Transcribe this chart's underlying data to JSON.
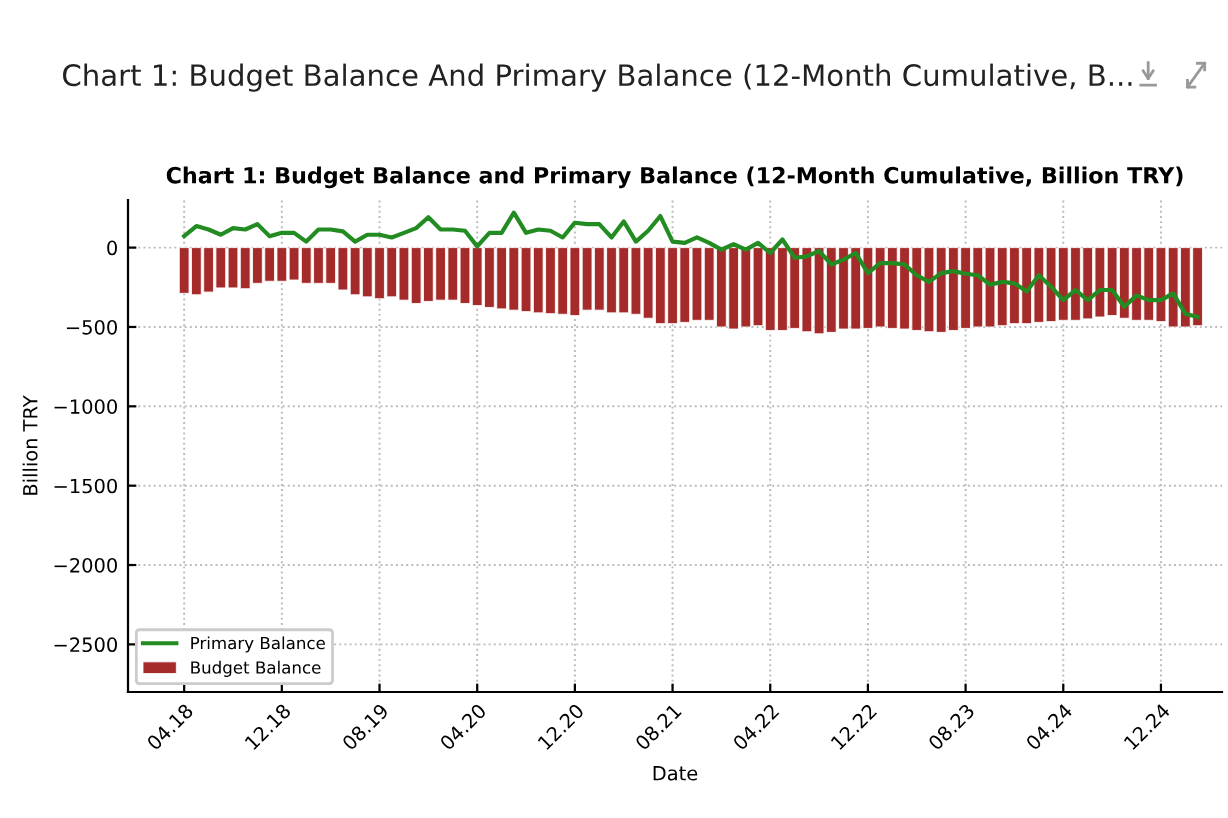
{
  "chart_data": {
    "type": "bar",
    "title": "Chart 1: Budget Balance and Primary Balance (12-Month Cumulative, Billion TRY)",
    "xlabel": "Date",
    "ylabel": "Billion TRY",
    "annotations": [
      "Chart 1: Budget Balance And Primary Balance (12-Month Cumulative, B..."
    ],
    "categories": [
      "04.18",
      null,
      null,
      null,
      null,
      null,
      null,
      null,
      "12.18",
      null,
      null,
      null,
      null,
      null,
      null,
      null,
      "08.19",
      null,
      null,
      null,
      null,
      null,
      null,
      null,
      "04.20",
      null,
      null,
      null,
      null,
      null,
      null,
      null,
      "12.20",
      null,
      null,
      null,
      null,
      null,
      null,
      null,
      "08.21",
      null,
      null,
      null,
      null,
      null,
      null,
      null,
      "04.22",
      null,
      null,
      null,
      null,
      null,
      null,
      null,
      "12.22",
      null,
      null,
      null,
      null,
      null,
      null,
      null,
      "08.23",
      null,
      null,
      null,
      null,
      null,
      null,
      null,
      "04.24",
      null,
      null,
      null,
      null,
      null,
      null,
      null,
      "12.24",
      null,
      null,
      null
    ],
    "series": [
      {
        "name": "Primary Balance",
        "type": "line",
        "color": "#228b22",
        "values": [
          72,
          136,
          114,
          81,
          123,
          114,
          148,
          72,
          93,
          93,
          38,
          114,
          114,
          102,
          38,
          81,
          81,
          64,
          93,
          123,
          191,
          114,
          114,
          106,
          8,
          93,
          93,
          220,
          93,
          114,
          106,
          64,
          157,
          148,
          148,
          64,
          165,
          38,
          106,
          199,
          38,
          30,
          64,
          30,
          -13,
          21,
          -13,
          30,
          -34,
          51,
          -64,
          -55,
          -21,
          -106,
          -76,
          -34,
          -161,
          -98,
          -98,
          -106,
          -174,
          -216,
          -161,
          -148,
          -165,
          -174,
          -233,
          -216,
          -225,
          -276,
          -174,
          -246,
          -331,
          -267,
          -331,
          -267,
          -267,
          -373,
          -301,
          -331,
          -331,
          -288,
          -416,
          -437
        ]
      },
      {
        "name": "Budget Balance",
        "color": "#a52a2a",
        "values": [
          -288,
          -297,
          -280,
          -254,
          -254,
          -259,
          -225,
          -212,
          -212,
          -204,
          -225,
          -225,
          -225,
          -267,
          -297,
          -310,
          -322,
          -310,
          -331,
          -352,
          -339,
          -331,
          -331,
          -352,
          -365,
          -377,
          -386,
          -394,
          -403,
          -411,
          -416,
          -420,
          -428,
          -394,
          -394,
          -411,
          -411,
          -420,
          -445,
          -479,
          -479,
          -471,
          -458,
          -458,
          -500,
          -513,
          -500,
          -492,
          -522,
          -522,
          -509,
          -530,
          -543,
          -534,
          -513,
          -513,
          -509,
          -500,
          -509,
          -513,
          -522,
          -530,
          -534,
          -522,
          -509,
          -500,
          -500,
          -492,
          -479,
          -479,
          -471,
          -466,
          -458,
          -458,
          -449,
          -437,
          -428,
          -445,
          -458,
          -458,
          -466,
          -500,
          -500,
          -492
        ]
      }
    ],
    "ylim": [
      -2800,
      300
    ],
    "yticks": [
      {
        "value": -2500,
        "label": "−2500"
      },
      {
        "value": -2000,
        "label": "−2000"
      },
      {
        "value": -1500,
        "label": "−1500"
      },
      {
        "value": -1000,
        "label": "−1000"
      },
      {
        "value": -500,
        "label": "−500"
      },
      0
    ],
    "grid": true,
    "legend": "bottom left",
    "line_style": "solid",
    "marker": "none"
  }
}
